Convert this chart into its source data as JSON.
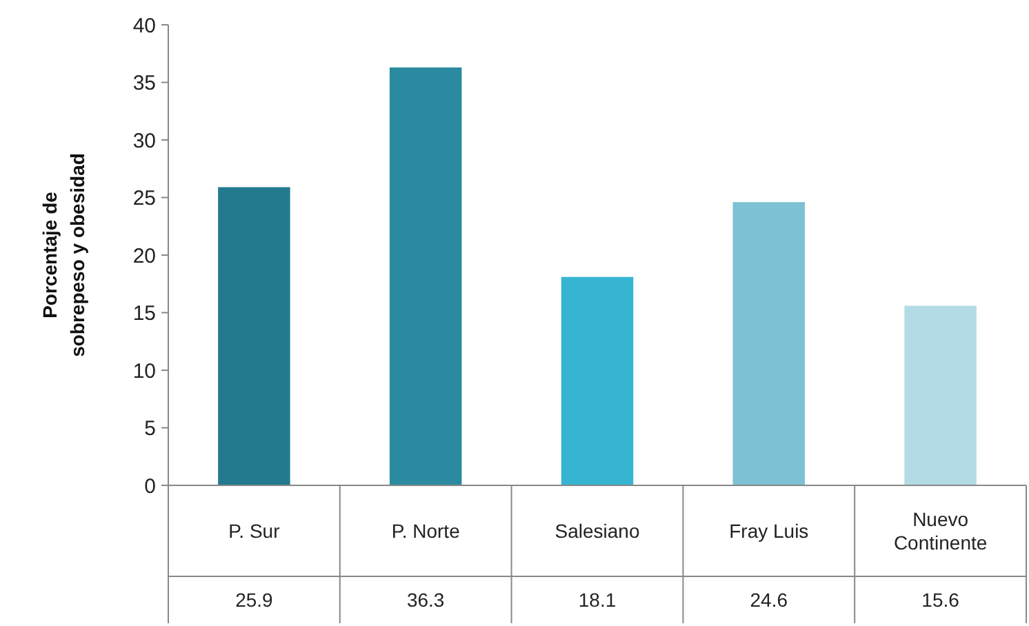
{
  "chart_data": {
    "type": "bar",
    "ylabel": "Porcentaje de\nsobrepeso y obesidad",
    "categories": [
      "P. Sur",
      "P. Norte",
      "Salesiano",
      "Fray Luis",
      "Nuevo\nContinente"
    ],
    "values": [
      25.9,
      36.3,
      18.1,
      24.6,
      15.6
    ],
    "colors": [
      "#237a8e",
      "#2a8ba0",
      "#36b4d2",
      "#7cc2d4",
      "#b3dbe6"
    ],
    "ylim": [
      0,
      40
    ],
    "yticks": [
      0,
      5,
      10,
      15,
      20,
      25,
      30,
      35,
      40
    ],
    "grid": false,
    "data_labels": true
  }
}
